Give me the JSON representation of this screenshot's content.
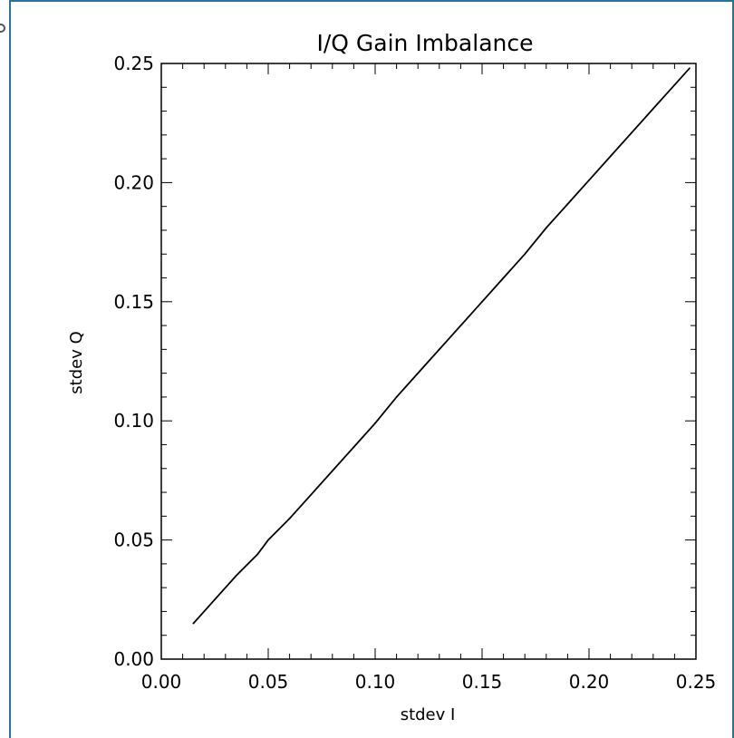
{
  "chart_data": {
    "type": "line",
    "title": "I/Q Gain Imbalance",
    "xlabel": "stdev I",
    "ylabel": "stdev Q",
    "xlim": [
      0.0,
      0.25
    ],
    "ylim": [
      0.0,
      0.25
    ],
    "xticks": [
      "0.00",
      "0.05",
      "0.10",
      "0.15",
      "0.20",
      "0.25"
    ],
    "yticks": [
      "0.00",
      "0.05",
      "0.10",
      "0.15",
      "0.20",
      "0.25"
    ],
    "grid": false,
    "series": [
      {
        "x": [
          0.015,
          0.025,
          0.035,
          0.045,
          0.05,
          0.06,
          0.07,
          0.08,
          0.09,
          0.1,
          0.11,
          0.12,
          0.13,
          0.14,
          0.15,
          0.16,
          0.17,
          0.18,
          0.19,
          0.2,
          0.21,
          0.22,
          0.23,
          0.24,
          0.247
        ],
        "y": [
          0.015,
          0.025,
          0.035,
          0.044,
          0.05,
          0.059,
          0.069,
          0.079,
          0.089,
          0.099,
          0.11,
          0.12,
          0.13,
          0.14,
          0.15,
          0.16,
          0.17,
          0.181,
          0.191,
          0.201,
          0.211,
          0.221,
          0.231,
          0.241,
          0.248
        ]
      }
    ]
  }
}
